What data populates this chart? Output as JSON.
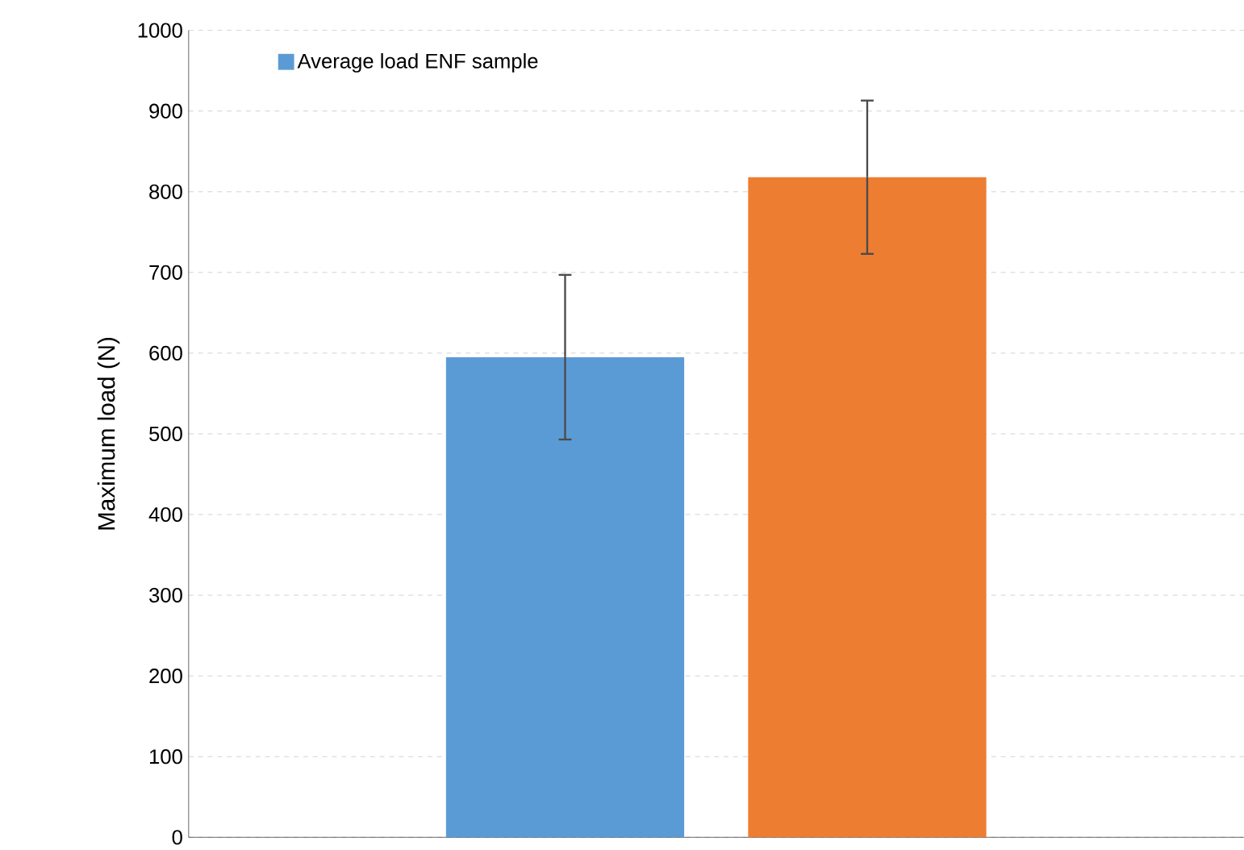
{
  "chart_data": {
    "type": "bar",
    "ylabel": "Maximum load (N)",
    "categories": [
      null
    ],
    "series": [
      {
        "name": "Average load ENF sample",
        "color": "#5b9bd5",
        "values": [
          595
        ],
        "errors": [
          102
        ]
      },
      {
        "color": "#ed7d31",
        "values": [
          818
        ],
        "errors": [
          95
        ]
      }
    ],
    "ylim": [
      0,
      1000
    ],
    "yticks": [
      0,
      100,
      200,
      300,
      400,
      500,
      600,
      700,
      800,
      900,
      1000
    ],
    "grid": "y",
    "legend": "top left"
  }
}
